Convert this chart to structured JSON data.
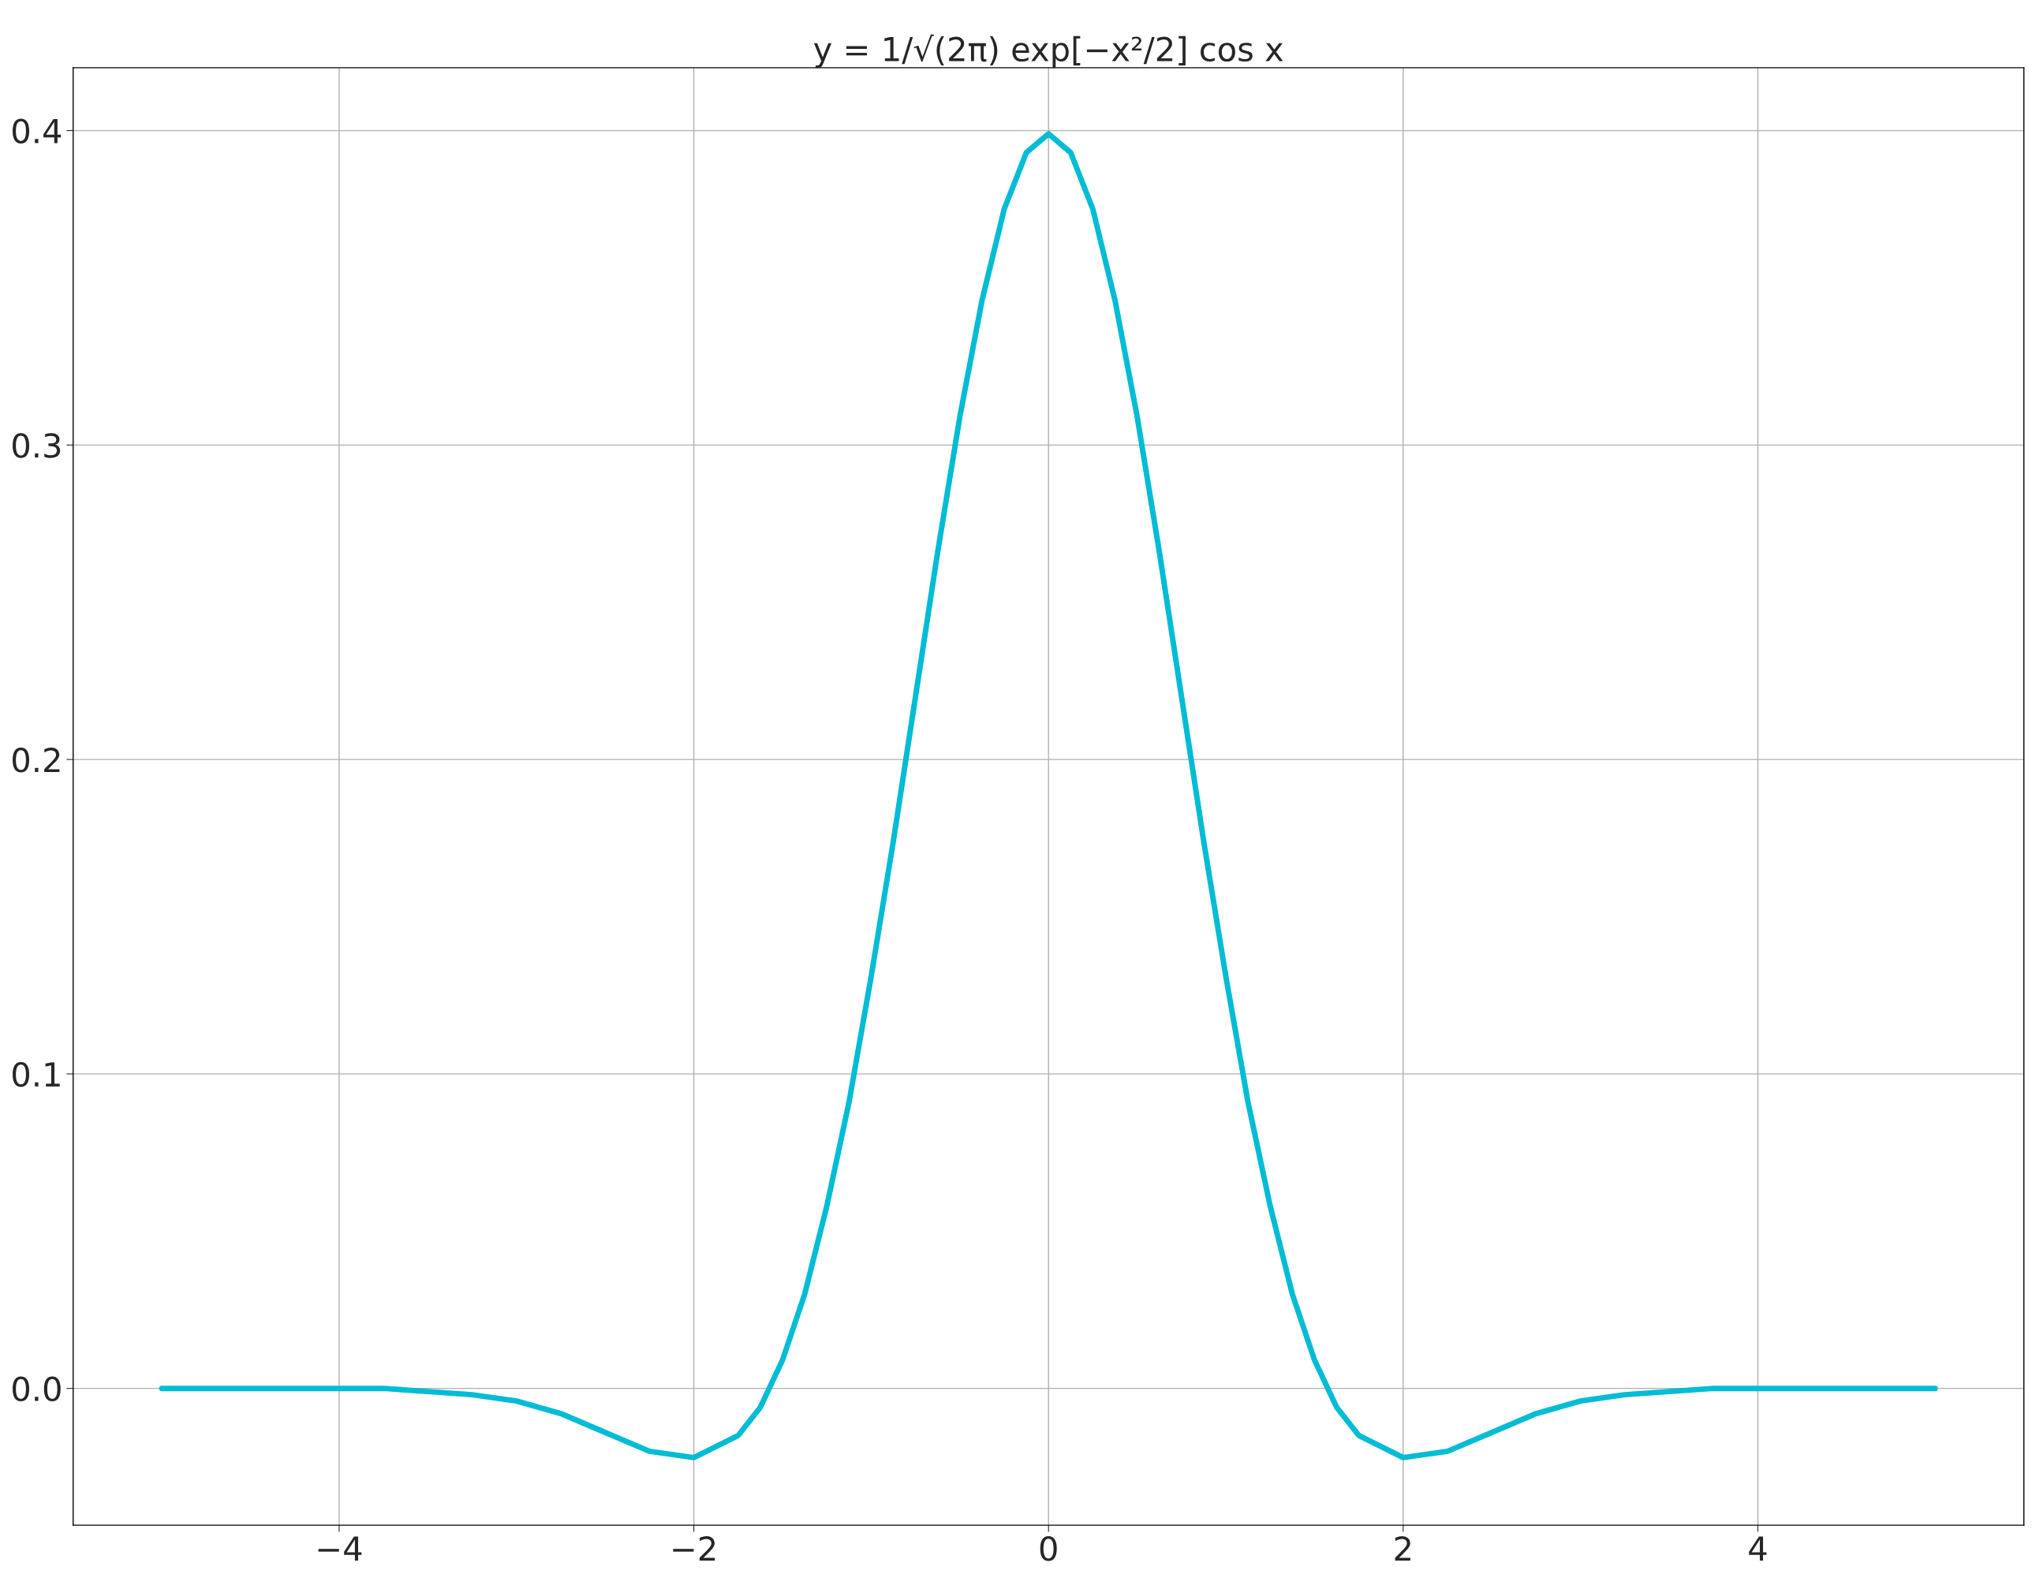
{
  "chart_data": {
    "type": "line",
    "title": "y = 1/√(2π) exp[−x²/2] cos x",
    "x": [
      -5,
      -4.5,
      -4,
      -3.75,
      -3.5,
      -3.25,
      -3,
      -2.75,
      -2.5,
      -2.25,
      -2,
      -1.75,
      -1.625,
      -1.5,
      -1.375,
      -1.25,
      -1.125,
      -1,
      -0.875,
      -0.75,
      -0.625,
      -0.5,
      -0.375,
      -0.25,
      -0.125,
      0,
      0.125,
      0.25,
      0.375,
      0.5,
      0.625,
      0.75,
      0.875,
      1,
      1.125,
      1.25,
      1.375,
      1.5,
      1.625,
      1.75,
      2,
      2.25,
      2.5,
      2.75,
      3,
      3.25,
      3.5,
      3.75,
      4,
      4.5,
      5
    ],
    "series": [
      {
        "color": "#00bcd4",
        "values": [
          0,
          0,
          0,
          0,
          -0.001,
          -0.002,
          -0.004,
          -0.008,
          -0.014,
          -0.02,
          -0.022,
          -0.015,
          -0.006,
          0.009,
          0.03,
          0.058,
          0.091,
          0.131,
          0.174,
          0.22,
          0.266,
          0.309,
          0.346,
          0.375,
          0.393,
          0.399,
          0.393,
          0.375,
          0.346,
          0.309,
          0.266,
          0.22,
          0.174,
          0.131,
          0.091,
          0.058,
          0.03,
          0.009,
          -0.006,
          -0.015,
          -0.022,
          -0.02,
          -0.014,
          -0.008,
          -0.004,
          -0.002,
          -0.001,
          0,
          0,
          0,
          0
        ]
      }
    ],
    "xlim": [
      -5.5,
      5.5
    ],
    "xticks": [
      {
        "value": -4,
        "label": "−4"
      },
      {
        "value": -2,
        "label": "−2"
      },
      0,
      2,
      4
    ],
    "ylim": [
      -0.0435,
      0.42
    ],
    "yticks": [
      {
        "value": 0,
        "label": "0.0"
      },
      0.1,
      0.2,
      0.3,
      0.4
    ],
    "grid": true
  }
}
